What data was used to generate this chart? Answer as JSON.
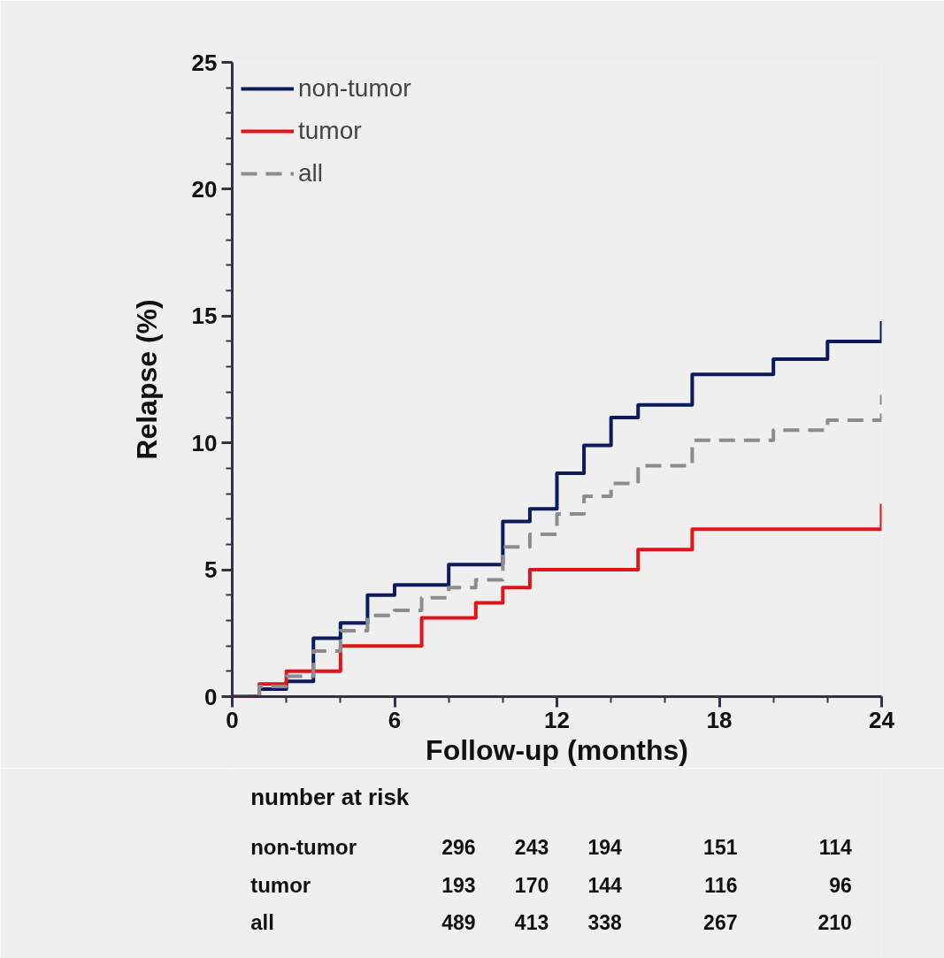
{
  "chart_data": {
    "type": "step",
    "xlabel": "Follow-up (months)",
    "ylabel": "Relapse (%)",
    "series": [
      {
        "name": "non-tumor",
        "color": "#0d1a5c",
        "line_style": "solid",
        "x": [
          0,
          1,
          2,
          3,
          4,
          5,
          6,
          8,
          10,
          11,
          12,
          13,
          14,
          15,
          17,
          20,
          22,
          24
        ],
        "values": [
          0,
          0.3,
          0.6,
          2.3,
          2.9,
          4.0,
          4.4,
          5.2,
          6.9,
          7.4,
          8.8,
          9.9,
          11.0,
          11.5,
          12.7,
          13.3,
          14.0,
          14.8
        ]
      },
      {
        "name": "tumor",
        "color": "#e0141b",
        "line_style": "solid",
        "x": [
          0,
          1,
          2,
          4,
          7,
          9,
          10,
          11,
          15,
          17,
          24
        ],
        "values": [
          0,
          0.5,
          1.0,
          2.0,
          3.1,
          3.7,
          4.3,
          5.0,
          5.8,
          6.6,
          7.6
        ]
      },
      {
        "name": "all",
        "color": "#8c8c8c",
        "line_style": "dashed",
        "x": [
          0,
          1,
          2,
          3,
          4,
          5,
          6,
          7,
          8,
          9,
          10,
          11,
          12,
          13,
          14,
          15,
          17,
          20,
          22,
          24
        ],
        "values": [
          0,
          0.4,
          0.8,
          1.8,
          2.6,
          3.2,
          3.4,
          3.9,
          4.3,
          4.6,
          5.9,
          6.4,
          7.2,
          7.9,
          8.4,
          9.1,
          10.1,
          10.5,
          10.9,
          11.9
        ]
      }
    ],
    "xlim": [
      0,
      24
    ],
    "xticks": [
      0,
      6,
      12,
      18,
      24
    ],
    "ylim": [
      0,
      25
    ],
    "yticks": [
      0,
      5,
      10,
      15,
      20,
      25
    ],
    "grid": false,
    "legend": "top left",
    "annotations": [
      "number at risk",
      "non-tumor",
      "296",
      "243",
      "194",
      "151",
      "114",
      "tumor",
      "193",
      "170",
      "144",
      "116",
      "96",
      "all",
      "489",
      "413",
      "338",
      "267",
      "210"
    ]
  }
}
